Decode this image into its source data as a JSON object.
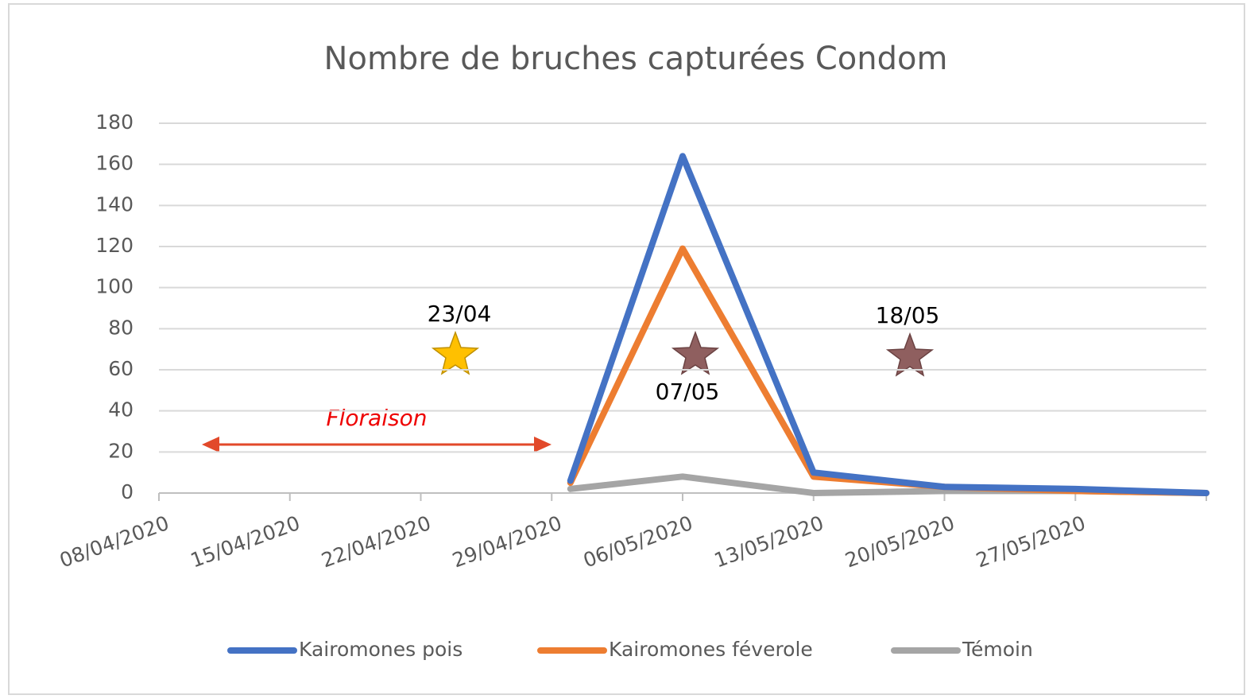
{
  "chart_data": {
    "type": "line",
    "title": "Nombre de bruches capturées Condom",
    "x": [
      "2020-04-30",
      "2020-05-06",
      "2020-05-13",
      "2020-05-20",
      "2020-05-27",
      "2020-06-03"
    ],
    "series": [
      {
        "name": "Kairomones pois",
        "color": "#4472c4",
        "values": [
          6,
          164,
          10,
          3,
          2,
          0
        ]
      },
      {
        "name": "Kairomones féverole",
        "color": "#ed7d31",
        "values": [
          5,
          119,
          8,
          3,
          1,
          0
        ]
      },
      {
        "name": "Témoin",
        "color": "#a5a5a5",
        "values": [
          2,
          8,
          0,
          1,
          1,
          0
        ]
      }
    ],
    "xlim": [
      "2020-04-08",
      "2020-06-03"
    ],
    "xticks": [
      {
        "value": "2020-04-08",
        "label": "08/04/2020"
      },
      {
        "value": "2020-04-15",
        "label": "15/04/2020"
      },
      {
        "value": "2020-04-22",
        "label": "22/04/2020"
      },
      {
        "value": "2020-04-29",
        "label": "29/04/2020"
      },
      {
        "value": "2020-05-06",
        "label": "06/05/2020"
      },
      {
        "value": "2020-05-13",
        "label": "13/05/2020"
      },
      {
        "value": "2020-05-20",
        "label": "20/05/2020"
      },
      {
        "value": "2020-05-27",
        "label": "27/05/2020"
      }
    ],
    "ylim": [
      0,
      180
    ],
    "yticks": [
      0,
      20,
      40,
      60,
      80,
      100,
      120,
      140,
      160,
      180
    ],
    "grid": true,
    "legend": "bottom",
    "annotations": [
      "23/04",
      "07/05",
      "18/05",
      "Floraison"
    ]
  }
}
